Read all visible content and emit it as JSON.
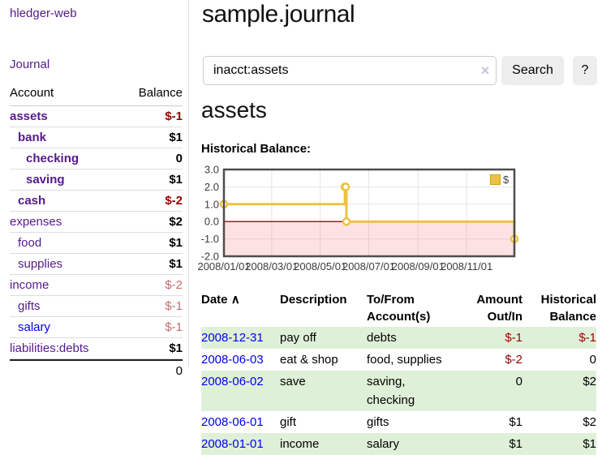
{
  "app": {
    "title": "hledger-web"
  },
  "colors": {
    "link_purple": "#551a8b",
    "link_blue": "#0000ee",
    "negative_strong": "#9a0000",
    "negative_faint": "#bf6e6e",
    "row_shade_green": "#dff0d8",
    "chart_line": "#edc240",
    "chart_zero_line": "#8b0f0f",
    "chart_negative_region": "rgba(245,140,140,0.25)",
    "chart_grid": "#e5e5e5",
    "chart_border": "#4d4d4d"
  },
  "sidebar": {
    "nav": [
      {
        "label": "Journal"
      }
    ],
    "accounts_table": {
      "headers": {
        "account": "Account",
        "balance": "Balance"
      },
      "rows": [
        {
          "label": "assets",
          "indent": 0,
          "bold": true,
          "link_color": "purple",
          "balance": "$-1",
          "balance_class": "neg-strong"
        },
        {
          "label": "bank",
          "indent": 1,
          "bold": true,
          "link_color": "purple",
          "balance": "$1",
          "balance_class": "pos"
        },
        {
          "label": "checking",
          "indent": 2,
          "bold": true,
          "link_color": "purple",
          "balance": "0",
          "balance_class": "pos"
        },
        {
          "label": "saving",
          "indent": 2,
          "bold": true,
          "link_color": "purple",
          "balance": "$1",
          "balance_class": "pos"
        },
        {
          "label": "cash",
          "indent": 1,
          "bold": true,
          "link_color": "purple",
          "balance": "$-2",
          "balance_class": "neg-strong"
        },
        {
          "label": "expenses",
          "indent": 0,
          "bold": false,
          "link_color": "purple",
          "balance": "$2",
          "balance_class": "pos"
        },
        {
          "label": "food",
          "indent": 1,
          "bold": false,
          "link_color": "purple",
          "balance": "$1",
          "balance_class": "pos"
        },
        {
          "label": "supplies",
          "indent": 1,
          "bold": false,
          "link_color": "purple",
          "balance": "$1",
          "balance_class": "pos"
        },
        {
          "label": "income",
          "indent": 0,
          "bold": false,
          "link_color": "purple",
          "balance": "$-2",
          "balance_class": "neg-faint"
        },
        {
          "label": "gifts",
          "indent": 1,
          "bold": false,
          "link_color": "purple",
          "balance": "$-1",
          "balance_class": "neg-faint"
        },
        {
          "label": "salary",
          "indent": 1,
          "bold": false,
          "link_color": "blue",
          "balance": "$-1",
          "balance_class": "neg-faint"
        },
        {
          "label": "liabilities:debts",
          "indent": 0,
          "bold": false,
          "link_color": "purple",
          "balance": "$1",
          "balance_class": "pos"
        }
      ],
      "total": "0"
    }
  },
  "main": {
    "title": "sample.journal",
    "search": {
      "value": "inacct:assets",
      "clear_icon": "×",
      "button_label": "Search",
      "help_label": "?"
    },
    "account_heading": "assets",
    "register_table": {
      "headers": {
        "date": "Date",
        "sort_icon": "∧",
        "description": "Description",
        "tofrom_line1": "To/From",
        "tofrom_line2": "Account(s)",
        "amount_line1": "Amount",
        "amount_line2": "Out/In",
        "balance_line1": "Historical",
        "balance_line2": "Balance"
      },
      "rows": [
        {
          "date": "2008-12-31",
          "description": "pay off",
          "accounts": "debts",
          "amount": "$-1",
          "amount_neg": true,
          "balance": "$-1",
          "balance_neg": true,
          "shaded": true
        },
        {
          "date": "2008-06-03",
          "description": "eat & shop",
          "accounts": "food, supplies",
          "amount": "$-2",
          "amount_neg": true,
          "balance": "0",
          "balance_neg": false,
          "shaded": false
        },
        {
          "date": "2008-06-02",
          "description": "save",
          "accounts": "saving, checking",
          "amount": "0",
          "amount_neg": false,
          "balance": "$2",
          "balance_neg": false,
          "shaded": true
        },
        {
          "date": "2008-06-01",
          "description": "gift",
          "accounts": "gifts",
          "amount": "$1",
          "amount_neg": false,
          "balance": "$2",
          "balance_neg": false,
          "shaded": false
        },
        {
          "date": "2008-01-01",
          "description": "income",
          "accounts": "salary",
          "amount": "$1",
          "amount_neg": false,
          "balance": "$1",
          "balance_neg": false,
          "shaded": true
        }
      ]
    }
  },
  "chart_data": {
    "type": "line",
    "title": "Historical Balance:",
    "step": true,
    "series": [
      {
        "name": "$",
        "color": "#edc240",
        "points": [
          [
            "2008/01/01",
            1
          ],
          [
            "2008/06/01",
            2
          ],
          [
            "2008/06/02",
            2
          ],
          [
            "2008/06/03",
            0
          ],
          [
            "2008/12/31",
            -1
          ]
        ]
      }
    ],
    "x_range": [
      "2008/01/01",
      "2008/12/31"
    ],
    "x_ticks": [
      "2008/01/01",
      "2008/03/01",
      "2008/05/01",
      "2008/07/01",
      "2008/09/01",
      "2008/11/01"
    ],
    "y_ticks": [
      3.0,
      2.0,
      1.0,
      0.0,
      -1.0,
      -2.0
    ],
    "ylim": [
      -2,
      3
    ],
    "grid": true,
    "legend_position": "top-right",
    "negative_region_below": 0
  }
}
